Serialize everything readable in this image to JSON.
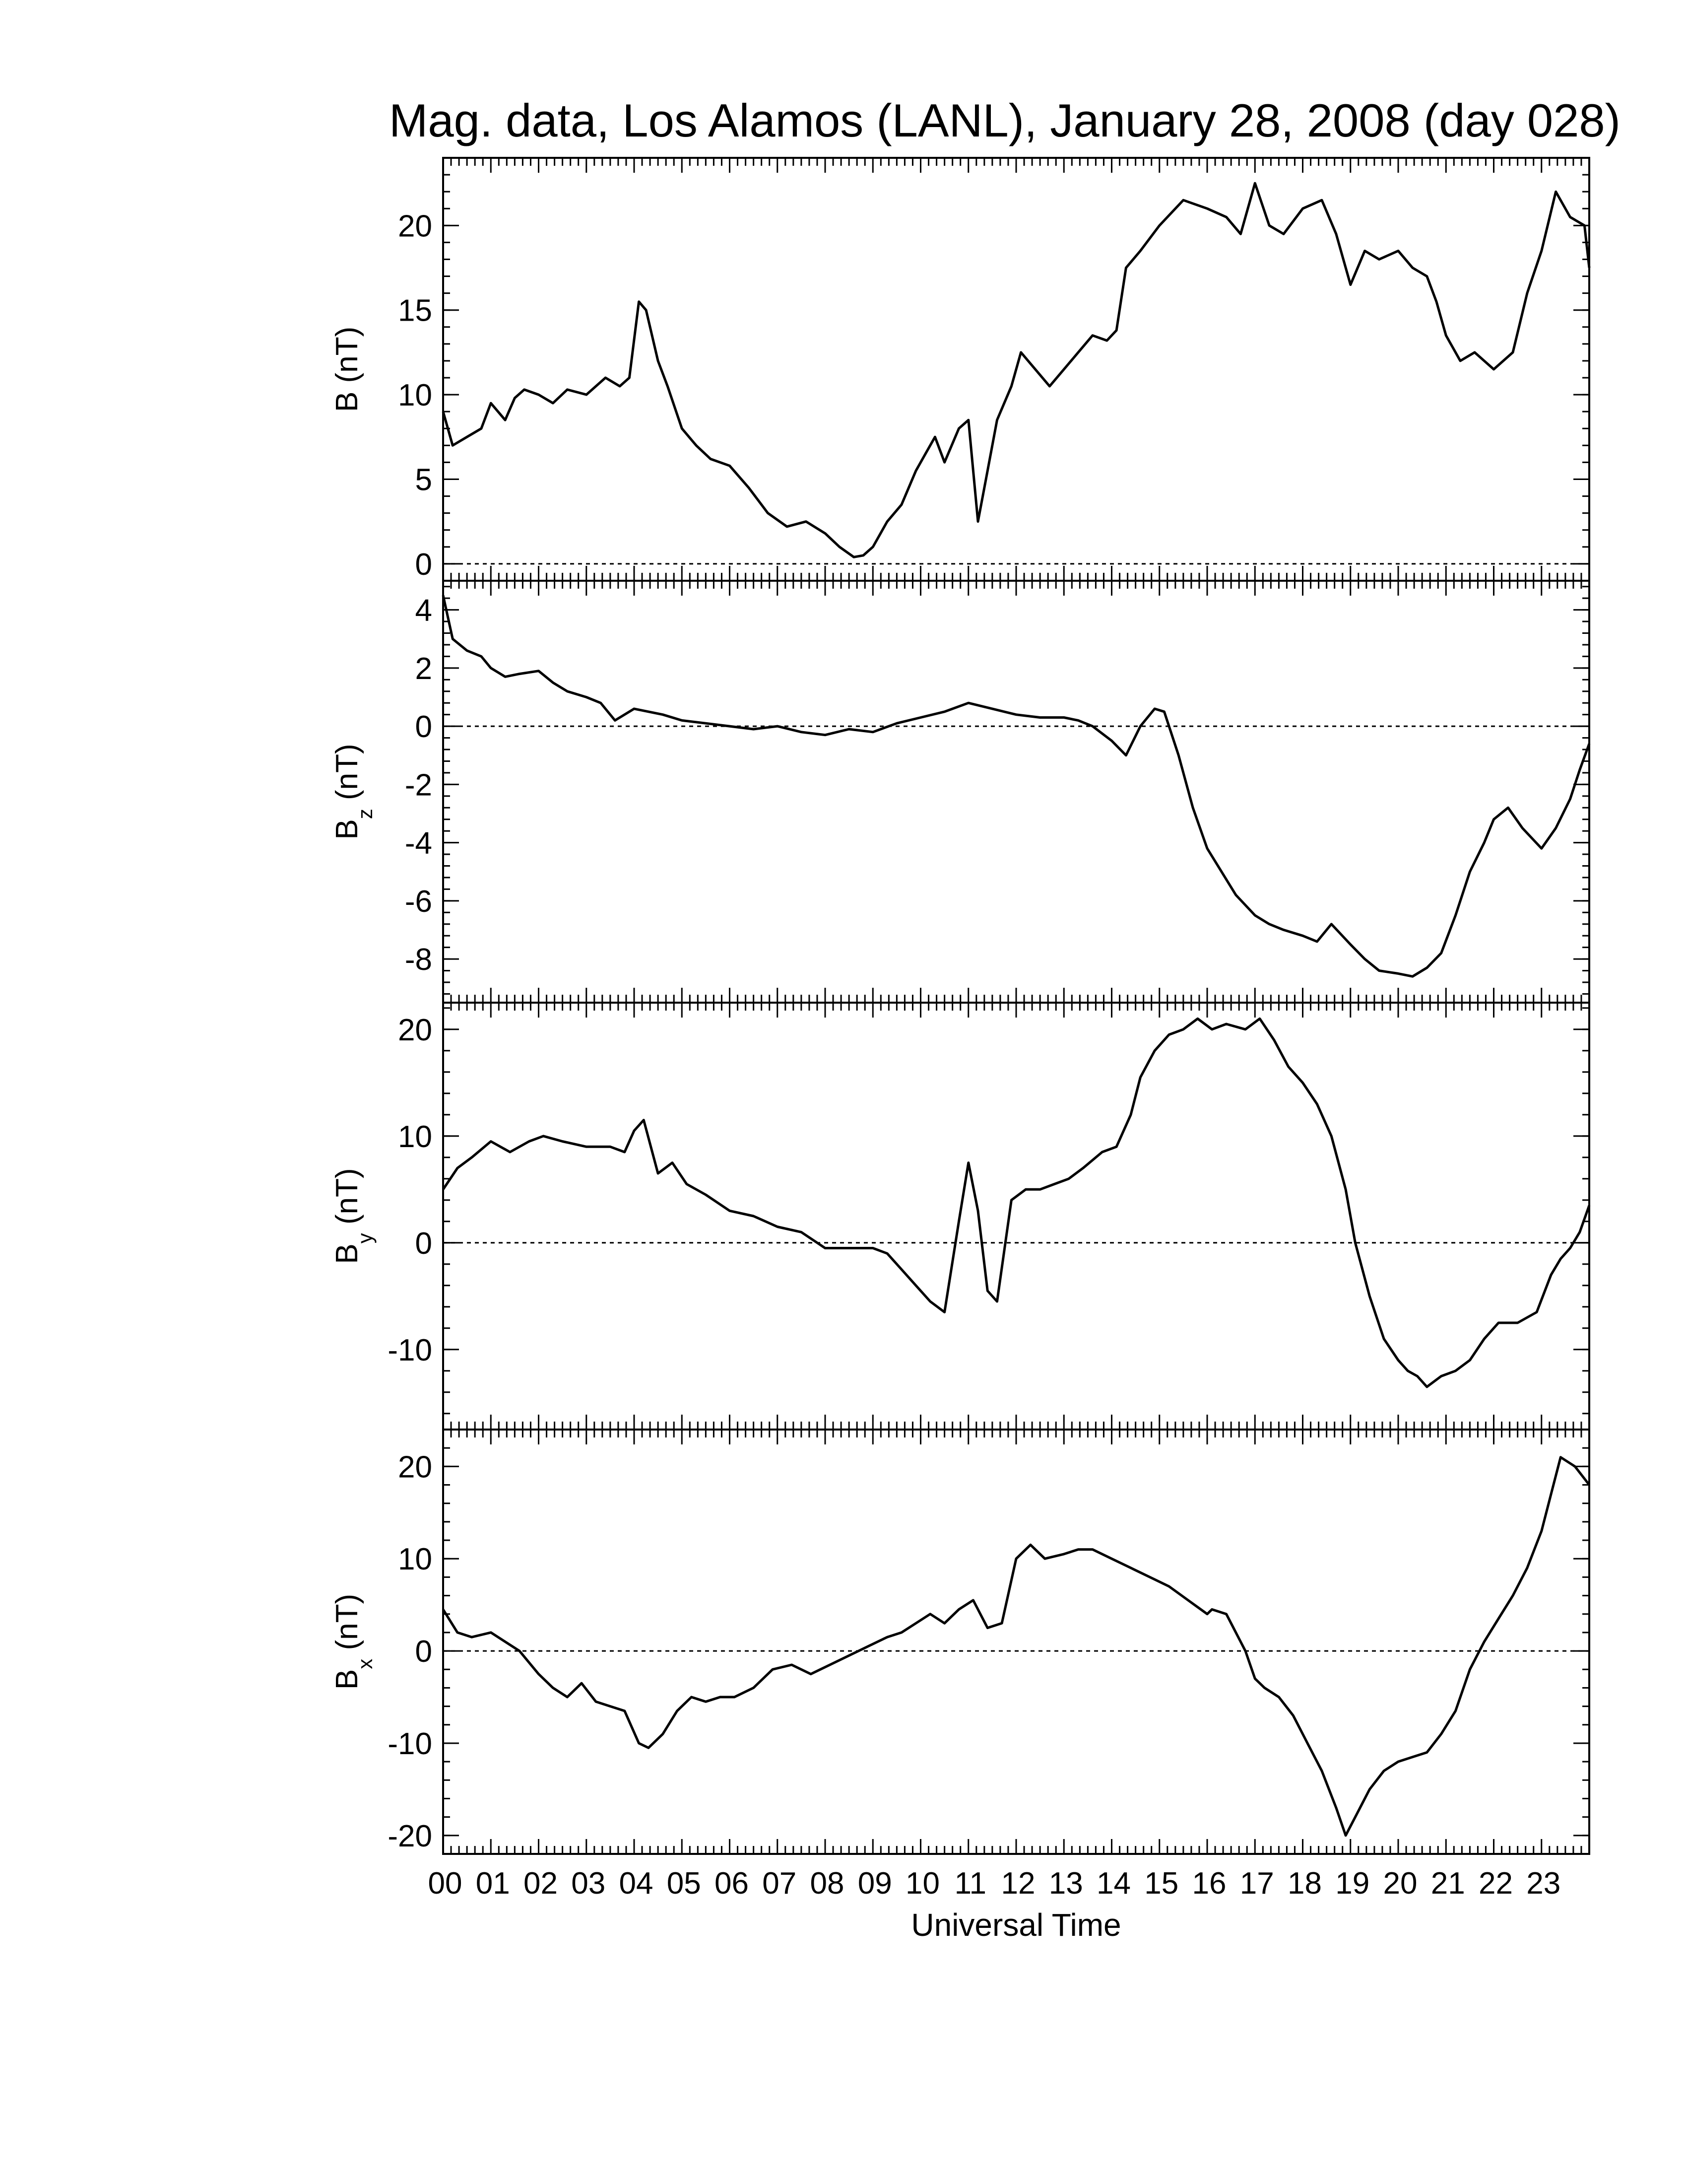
{
  "chart_data": {
    "type": "line",
    "title": "Mag. data, Los Alamos (LANL), January 28, 2008 (day 028)",
    "xlabel": "Universal Time",
    "x_unit": "hour UT",
    "xlim": [
      0,
      24
    ],
    "x_ticks": [
      0,
      1,
      2,
      3,
      4,
      5,
      6,
      7,
      8,
      9,
      10,
      11,
      12,
      13,
      14,
      15,
      16,
      17,
      18,
      19,
      20,
      21,
      22,
      23
    ],
    "x_tick_labels": [
      "00",
      "01",
      "02",
      "03",
      "04",
      "05",
      "06",
      "07",
      "08",
      "09",
      "10",
      "11",
      "12",
      "13",
      "14",
      "15",
      "16",
      "17",
      "18",
      "19",
      "20",
      "21",
      "22",
      "23"
    ],
    "zero_line": "dotted",
    "panels": [
      {
        "ylabel_main": "B",
        "ylabel_sub": "",
        "ylabel_unit": "(nT)",
        "ylim": [
          -1,
          24
        ],
        "y_ticks": [
          0,
          5,
          10,
          15,
          20
        ],
        "y_tick_labels": [
          "0",
          "5",
          "10",
          "15",
          "20"
        ],
        "x": [
          0,
          0.2,
          0.5,
          0.8,
          1.0,
          1.3,
          1.5,
          1.7,
          2.0,
          2.3,
          2.6,
          3.0,
          3.4,
          3.7,
          3.9,
          4.1,
          4.25,
          4.5,
          4.7,
          5.0,
          5.3,
          5.6,
          6.0,
          6.4,
          6.8,
          7.2,
          7.6,
          8.0,
          8.3,
          8.6,
          8.8,
          9.0,
          9.3,
          9.6,
          9.9,
          10.1,
          10.3,
          10.5,
          10.8,
          11.0,
          11.2,
          11.4,
          11.6,
          11.9,
          12.1,
          12.4,
          12.7,
          13.0,
          13.3,
          13.6,
          13.9,
          14.1,
          14.3,
          14.6,
          15.0,
          15.5,
          16.0,
          16.4,
          16.7,
          17.0,
          17.3,
          17.6,
          18.0,
          18.4,
          18.7,
          19.0,
          19.3,
          19.6,
          20.0,
          20.3,
          20.6,
          20.8,
          21.0,
          21.3,
          21.6,
          22.0,
          22.4,
          22.7,
          23.0,
          23.3,
          23.6,
          23.9,
          24.0
        ],
        "y": [
          9.0,
          7.0,
          7.5,
          8.0,
          9.5,
          8.5,
          9.8,
          10.3,
          10.0,
          9.5,
          10.3,
          10.0,
          11.0,
          10.5,
          11.0,
          15.5,
          15.0,
          12.0,
          10.5,
          8.0,
          7.0,
          6.2,
          5.8,
          4.5,
          3.0,
          2.2,
          2.5,
          1.8,
          1.0,
          0.4,
          0.5,
          1.0,
          2.5,
          3.5,
          5.5,
          6.5,
          7.5,
          6.0,
          8.0,
          8.5,
          2.5,
          5.5,
          8.5,
          10.5,
          12.5,
          11.5,
          10.5,
          11.5,
          12.5,
          13.5,
          13.2,
          13.8,
          17.5,
          18.5,
          20.0,
          21.5,
          21.0,
          20.5,
          19.5,
          22.5,
          20.0,
          19.5,
          21.0,
          21.5,
          19.5,
          16.5,
          18.5,
          18.0,
          18.5,
          17.5,
          17.0,
          15.5,
          13.5,
          12.0,
          12.5,
          11.5,
          12.5,
          16.0,
          18.5,
          22.0,
          20.5,
          20.0,
          17.5
        ]
      },
      {
        "ylabel_main": "B",
        "ylabel_sub": "z",
        "ylabel_unit": "(nT)",
        "ylim": [
          -9.5,
          5.0
        ],
        "y_ticks": [
          -8,
          -6,
          -4,
          -2,
          0,
          2,
          4
        ],
        "y_tick_labels": [
          "-8",
          "-6",
          "-4",
          "-2",
          "0",
          "2",
          "4"
        ],
        "x": [
          0,
          0.2,
          0.5,
          0.8,
          1.0,
          1.3,
          1.6,
          2.0,
          2.3,
          2.6,
          3.0,
          3.3,
          3.6,
          4.0,
          4.3,
          4.6,
          5.0,
          5.5,
          6.0,
          6.5,
          7.0,
          7.5,
          8.0,
          8.5,
          9.0,
          9.5,
          10.0,
          10.5,
          11.0,
          11.5,
          12.0,
          12.5,
          13.0,
          13.3,
          13.6,
          14.0,
          14.3,
          14.6,
          14.9,
          15.1,
          15.4,
          15.7,
          16.0,
          16.3,
          16.6,
          17.0,
          17.3,
          17.6,
          18.0,
          18.3,
          18.6,
          19.0,
          19.3,
          19.6,
          20.0,
          20.3,
          20.6,
          20.9,
          21.2,
          21.5,
          21.8,
          22.0,
          22.3,
          22.6,
          23.0,
          23.3,
          23.6,
          23.8,
          24.0
        ],
        "y": [
          4.5,
          3.0,
          2.6,
          2.4,
          2.0,
          1.7,
          1.8,
          1.9,
          1.5,
          1.2,
          1.0,
          0.8,
          0.2,
          0.6,
          0.5,
          0.4,
          0.2,
          0.1,
          0.0,
          -0.1,
          0.0,
          -0.2,
          -0.3,
          -0.1,
          -0.2,
          0.1,
          0.3,
          0.5,
          0.8,
          0.6,
          0.4,
          0.3,
          0.3,
          0.2,
          0.0,
          -0.5,
          -1.0,
          0.0,
          0.6,
          0.5,
          -1.0,
          -2.8,
          -4.2,
          -5.0,
          -5.8,
          -6.5,
          -6.8,
          -7.0,
          -7.2,
          -7.4,
          -6.8,
          -7.5,
          -8.0,
          -8.4,
          -8.5,
          -8.6,
          -8.3,
          -7.8,
          -6.5,
          -5.0,
          -4.0,
          -3.2,
          -2.8,
          -3.5,
          -4.2,
          -3.5,
          -2.5,
          -1.5,
          -0.6
        ]
      },
      {
        "ylabel_main": "B",
        "ylabel_sub": "y",
        "ylabel_unit": "(nT)",
        "ylim": [
          -17.5,
          22.5
        ],
        "y_ticks": [
          -10,
          0,
          10,
          20
        ],
        "y_tick_labels": [
          "-10",
          "0",
          "10",
          "20"
        ],
        "x": [
          0,
          0.3,
          0.6,
          1.0,
          1.4,
          1.8,
          2.1,
          2.5,
          3.0,
          3.5,
          3.8,
          4.0,
          4.2,
          4.5,
          4.8,
          5.1,
          5.5,
          6.0,
          6.5,
          7.0,
          7.5,
          8.0,
          8.5,
          9.0,
          9.3,
          9.6,
          9.9,
          10.2,
          10.5,
          10.8,
          11.0,
          11.2,
          11.4,
          11.6,
          11.9,
          12.2,
          12.5,
          12.8,
          13.1,
          13.4,
          13.8,
          14.1,
          14.4,
          14.6,
          14.9,
          15.2,
          15.5,
          15.8,
          16.1,
          16.4,
          16.8,
          17.1,
          17.4,
          17.7,
          18.0,
          18.3,
          18.6,
          18.9,
          19.1,
          19.4,
          19.7,
          20.0,
          20.2,
          20.4,
          20.6,
          20.9,
          21.2,
          21.5,
          21.8,
          22.1,
          22.5,
          22.9,
          23.2,
          23.4,
          23.6,
          23.8,
          24.0
        ],
        "y": [
          5.0,
          7.0,
          8.0,
          9.5,
          8.5,
          9.5,
          10.0,
          9.5,
          9.0,
          9.0,
          8.5,
          10.5,
          11.5,
          6.5,
          7.5,
          5.5,
          4.5,
          3.0,
          2.5,
          1.5,
          1.0,
          -0.5,
          -0.5,
          -0.5,
          -1.0,
          -2.5,
          -4.0,
          -5.5,
          -6.5,
          2.0,
          7.5,
          3.0,
          -4.5,
          -5.5,
          4.0,
          5.0,
          5.0,
          5.5,
          6.0,
          7.0,
          8.5,
          9.0,
          12.0,
          15.5,
          18.0,
          19.5,
          20.0,
          21.0,
          20.0,
          20.5,
          20.0,
          21.0,
          19.0,
          16.5,
          15.0,
          13.0,
          10.0,
          5.0,
          0.0,
          -5.0,
          -9.0,
          -11.0,
          -12.0,
          -12.5,
          -13.5,
          -12.5,
          -12.0,
          -11.0,
          -9.0,
          -7.5,
          -7.5,
          -6.5,
          -3.0,
          -1.5,
          -0.5,
          1.0,
          3.5
        ]
      },
      {
        "ylabel_main": "B",
        "ylabel_sub": "x",
        "ylabel_unit": "(nT)",
        "ylim": [
          -22,
          24
        ],
        "y_ticks": [
          -20,
          -10,
          0,
          10,
          20
        ],
        "y_tick_labels": [
          "-20",
          "-10",
          "0",
          "10",
          "20"
        ],
        "x": [
          0,
          0.3,
          0.6,
          1.0,
          1.3,
          1.6,
          2.0,
          2.3,
          2.6,
          2.9,
          3.2,
          3.5,
          3.8,
          4.1,
          4.3,
          4.6,
          4.9,
          5.2,
          5.5,
          5.8,
          6.1,
          6.5,
          6.9,
          7.3,
          7.7,
          8.1,
          8.5,
          8.9,
          9.3,
          9.6,
          9.9,
          10.2,
          10.5,
          10.8,
          11.1,
          11.4,
          11.7,
          12.0,
          12.3,
          12.6,
          13.0,
          13.3,
          13.6,
          14.0,
          14.4,
          14.8,
          15.2,
          15.6,
          16.0,
          16.1,
          16.4,
          16.8,
          17.0,
          17.2,
          17.5,
          17.8,
          18.1,
          18.4,
          18.7,
          18.9,
          19.1,
          19.4,
          19.7,
          20.0,
          20.3,
          20.6,
          20.9,
          21.2,
          21.5,
          21.8,
          22.1,
          22.4,
          22.7,
          23.0,
          23.2,
          23.4,
          23.7,
          24.0
        ],
        "y": [
          4.5,
          2.0,
          1.5,
          2.0,
          1.0,
          0.0,
          -2.5,
          -4.0,
          -5.0,
          -3.5,
          -5.5,
          -6.0,
          -6.5,
          -10.0,
          -10.5,
          -9.0,
          -6.5,
          -5.0,
          -5.5,
          -5.0,
          -5.0,
          -4.0,
          -2.0,
          -1.5,
          -2.5,
          -1.5,
          -0.5,
          0.5,
          1.5,
          2.0,
          3.0,
          4.0,
          3.0,
          4.5,
          5.5,
          2.5,
          3.0,
          10.0,
          11.5,
          10.0,
          10.5,
          11.0,
          11.0,
          10.0,
          9.0,
          8.0,
          7.0,
          5.5,
          4.0,
          4.5,
          4.0,
          0.0,
          -3.0,
          -4.0,
          -5.0,
          -7.0,
          -10.0,
          -13.0,
          -17.0,
          -20.0,
          -18.0,
          -15.0,
          -13.0,
          -12.0,
          -11.5,
          -11.0,
          -9.0,
          -6.5,
          -2.0,
          1.0,
          3.5,
          6.0,
          9.0,
          13.0,
          17.0,
          21.0,
          20.0,
          18.0
        ]
      }
    ]
  }
}
